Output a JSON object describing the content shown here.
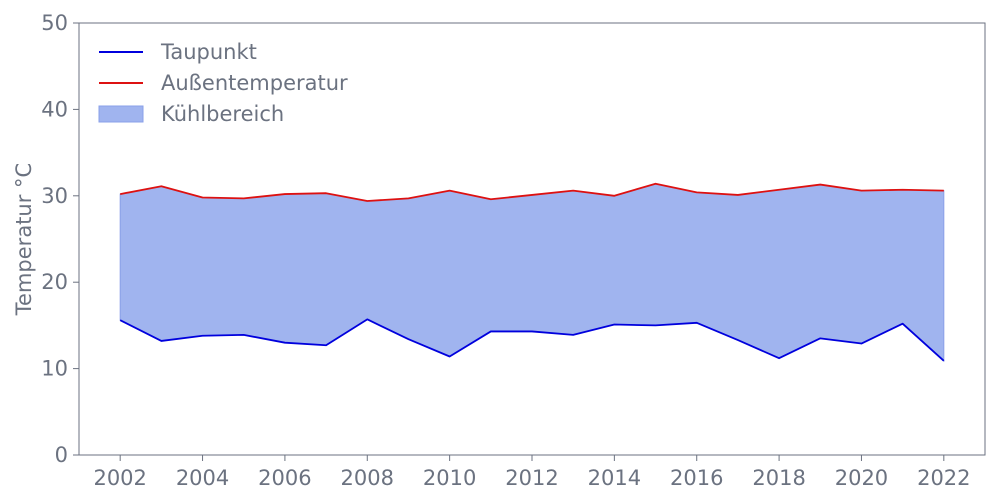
{
  "chart_data": {
    "type": "line",
    "title": "",
    "xlabel": "",
    "ylabel": "Temperatur °C",
    "xlim": [
      2001,
      2023
    ],
    "ylim": [
      0,
      50
    ],
    "x_ticks": [
      "2002",
      "2004",
      "2006",
      "2008",
      "2010",
      "2012",
      "2014",
      "2016",
      "2018",
      "2020",
      "2022"
    ],
    "y_ticks": [
      "0",
      "10",
      "20",
      "30",
      "40",
      "50"
    ],
    "grid": false,
    "legend_position": "top-left",
    "x": [
      2002,
      2003,
      2004,
      2005,
      2006,
      2007,
      2008,
      2009,
      2010,
      2011,
      2012,
      2013,
      2014,
      2015,
      2016,
      2017,
      2018,
      2019,
      2020,
      2021,
      2022
    ],
    "series": [
      {
        "name": "Taupunkt",
        "color": "#0000dd",
        "values": [
          15.6,
          13.2,
          13.8,
          13.9,
          13.0,
          12.7,
          15.7,
          13.4,
          11.4,
          14.3,
          14.3,
          13.9,
          15.1,
          15.0,
          15.3,
          13.3,
          11.2,
          13.5,
          12.9,
          15.2,
          10.9
        ]
      },
      {
        "name": "Außentemperatur",
        "color": "#dd1111",
        "values": [
          30.2,
          31.1,
          29.8,
          29.7,
          30.2,
          30.3,
          29.4,
          29.7,
          30.6,
          29.6,
          30.1,
          30.6,
          30.0,
          31.4,
          30.4,
          30.1,
          30.7,
          31.3,
          30.6,
          30.7,
          30.6
        ]
      }
    ],
    "fill": {
      "name": "Kühlbereich",
      "color": "#a0b4ef",
      "edge_color": "#8aa0e8",
      "between": [
        "Taupunkt",
        "Außentemperatur"
      ]
    },
    "axis_color": "#6b7280"
  }
}
